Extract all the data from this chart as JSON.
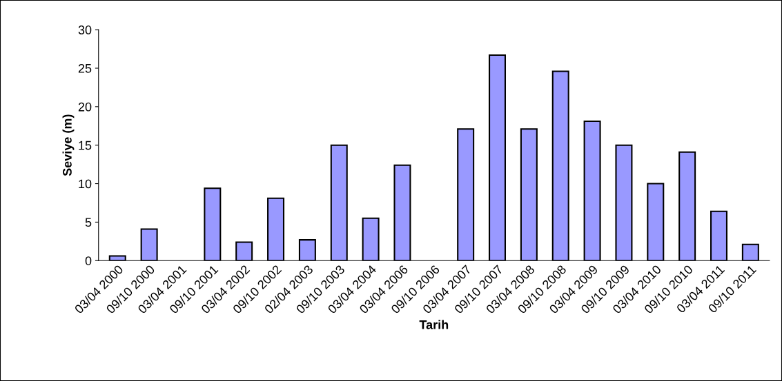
{
  "chart_data": {
    "type": "bar",
    "xlabel": "Tarih",
    "ylabel": "Seviye (m)",
    "categories": [
      "03/04 2000",
      "09/10 2000",
      "03/04 2001",
      "09/10 2001",
      "03/04 2002",
      "09/10 2002",
      "02/04 2003",
      "09/10 2003",
      "03/04 2004",
      "03/04 2006",
      "09/10 2006",
      "03/04 2007",
      "09/10 2007",
      "03/04 2008",
      "09/10 2008",
      "03/04 2009",
      "09/10 2009",
      "03/04 2010",
      "09/10 2010",
      "03/04 2011",
      "09/10 2011"
    ],
    "values": [
      0.6,
      4.1,
      null,
      9.4,
      2.4,
      8.1,
      2.7,
      15.0,
      5.5,
      12.4,
      null,
      17.1,
      26.7,
      17.1,
      24.6,
      18.1,
      15.0,
      10.0,
      14.1,
      6.4,
      2.1
    ],
    "color": "#9999ff",
    "ylim": [
      0,
      30
    ],
    "yticks": [
      0,
      5,
      10,
      15,
      20,
      25,
      30
    ],
    "grid": false
  }
}
